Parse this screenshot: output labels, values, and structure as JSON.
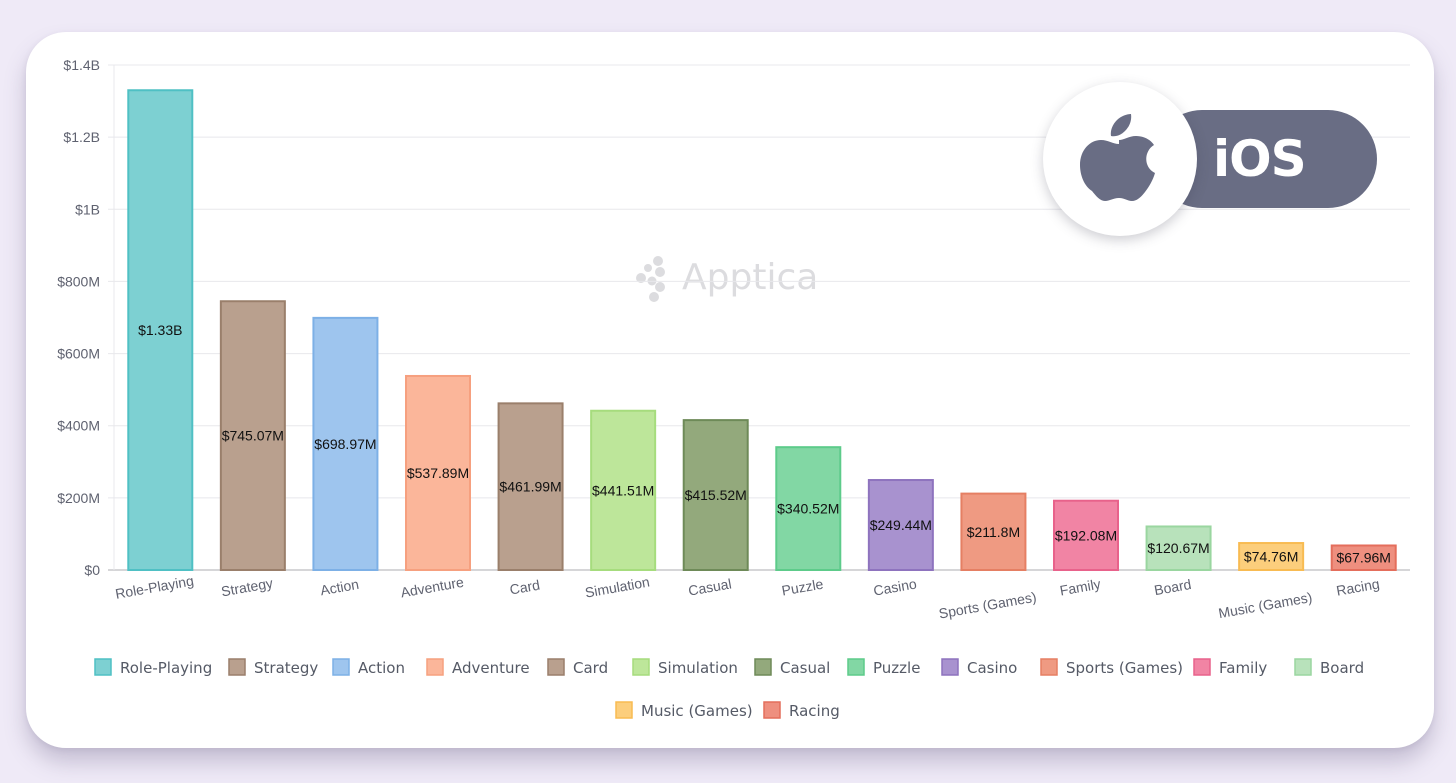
{
  "badge": {
    "platform_label": "iOS",
    "icon": "apple-icon"
  },
  "watermark": {
    "brand": "Apptica",
    "icon": "apptica-logo-icon"
  },
  "chart_data": {
    "type": "bar",
    "title": "",
    "xlabel": "",
    "ylabel": "",
    "ylim": [
      0,
      1400000000
    ],
    "yticks": [
      0,
      200000000,
      400000000,
      600000000,
      800000000,
      1000000000,
      1200000000,
      1400000000
    ],
    "ytick_labels": [
      "$0",
      "$200M",
      "$400M",
      "$600M",
      "$800M",
      "$1B",
      "$1.2B",
      "$1.4B"
    ],
    "grid": true,
    "legend_position": "bottom",
    "categories": [
      "Role-Playing",
      "Strategy",
      "Action",
      "Adventure",
      "Card",
      "Simulation",
      "Casual",
      "Puzzle",
      "Casino",
      "Sports (Games)",
      "Family",
      "Board",
      "Music (Games)",
      "Racing"
    ],
    "values": [
      1330000000,
      745070000,
      698970000,
      537890000,
      461990000,
      441510000,
      415520000,
      340520000,
      249440000,
      211800000,
      192080000,
      120670000,
      74760000,
      67960000
    ],
    "data_labels": [
      "$1.33B",
      "$745.07M",
      "$698.97M",
      "$537.89M",
      "$461.99M",
      "$441.51M",
      "$415.52M",
      "$340.52M",
      "$249.44M",
      "$211.8M",
      "$192.08M",
      "$120.67M",
      "$74.76M",
      "$67.96M"
    ],
    "colors": [
      "#7dd0d2",
      "#b9a08e",
      "#9ec5ee",
      "#fbb69a",
      "#b9a08e",
      "#bde69a",
      "#93a97c",
      "#82d7a4",
      "#a892cf",
      "#ef9a82",
      "#f184a4",
      "#b8e2bb",
      "#fcce7c",
      "#ee8f7f"
    ],
    "border_colors": [
      "#4fc0c4",
      "#9a7f6b",
      "#7db0e6",
      "#f6a07f",
      "#9a7f6b",
      "#a6dc7d",
      "#6e8a58",
      "#5dcb8a",
      "#8e73be",
      "#e57f63",
      "#e8628b",
      "#9ad6a0",
      "#f8bb52",
      "#e46e5c"
    ],
    "legend": [
      "Role-Playing",
      "Strategy",
      "Action",
      "Adventure",
      "Card",
      "Simulation",
      "Casual",
      "Puzzle",
      "Casino",
      "Sports (Games)",
      "Family",
      "Board",
      "Music (Games)",
      "Racing"
    ]
  }
}
